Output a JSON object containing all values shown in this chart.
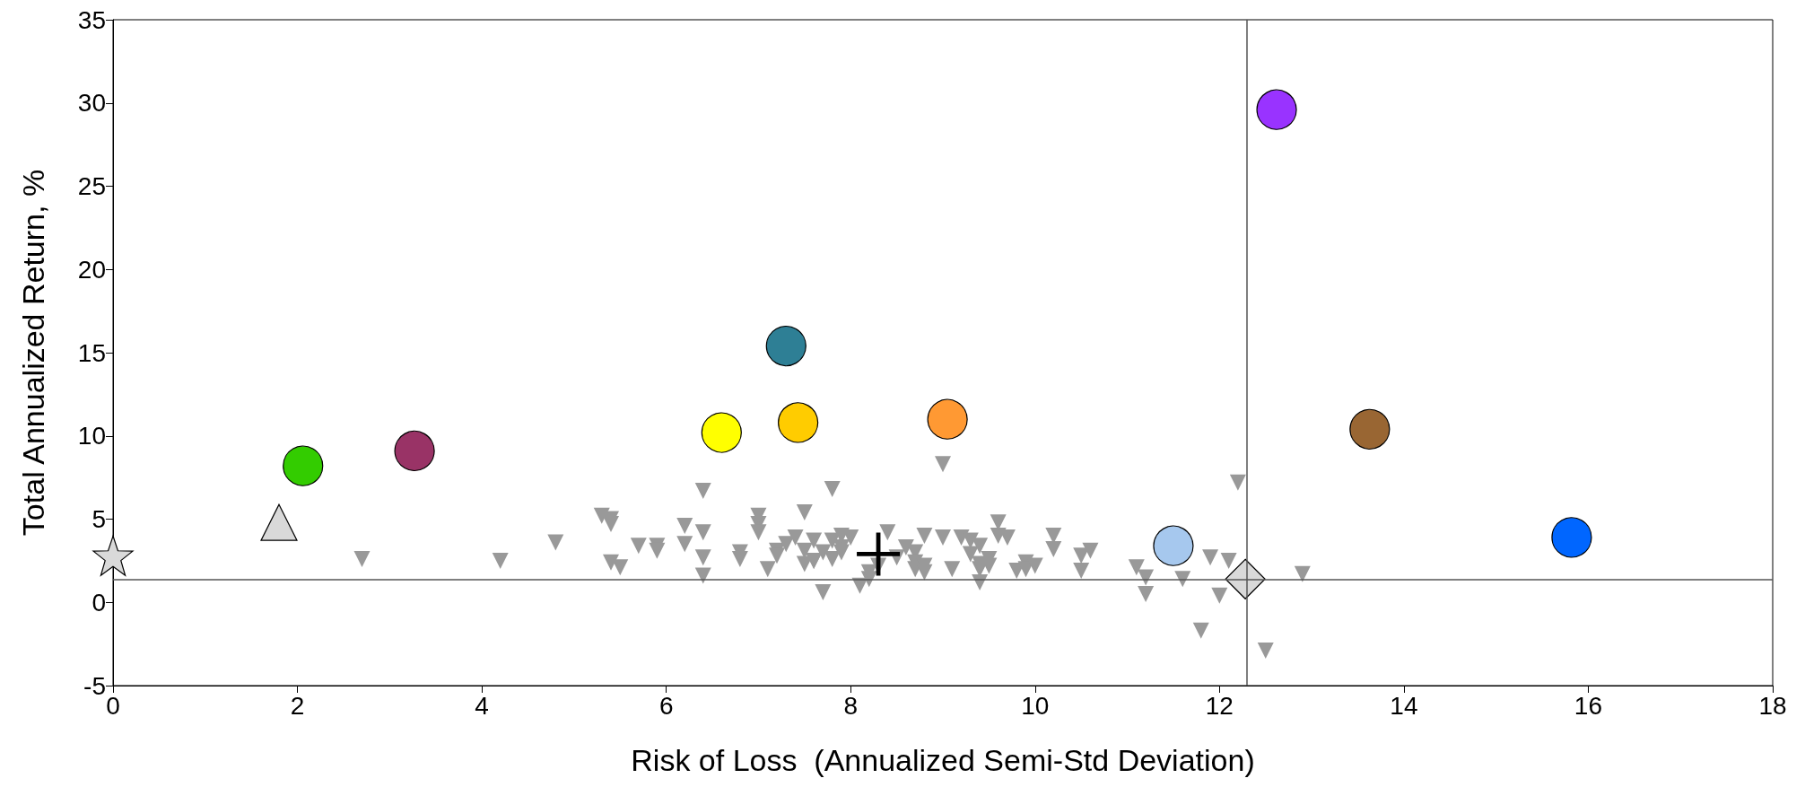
{
  "chart_data": {
    "type": "scatter",
    "xlabel": "Risk of Loss  (Annualized Semi-Std Deviation)",
    "ylabel": "Total Annualized Return, %",
    "xlim": [
      0,
      18
    ],
    "xticks": [
      0,
      2,
      4,
      6,
      8,
      10,
      12,
      14,
      16,
      18
    ],
    "ylim": [
      -5,
      35
    ],
    "yticks": [
      -5,
      0,
      5,
      10,
      15,
      20,
      25,
      30,
      35
    ],
    "grid": false,
    "ref_lines": [
      {
        "axis": "x",
        "value": 12.3,
        "color": "#555555"
      },
      {
        "axis": "y",
        "value": 1.4,
        "color": "#555555"
      }
    ],
    "series": [
      {
        "color": "#999999",
        "marker": "triangle_down",
        "x": [
          2.7,
          4.2,
          4.8,
          5.3,
          5.4,
          5.4,
          5.4,
          5.5,
          5.7,
          5.9,
          5.9,
          6.2,
          6.2,
          6.4,
          6.4,
          6.4,
          6.4,
          6.8,
          6.8,
          7.0,
          7.0,
          7.0,
          7.1,
          7.2,
          7.2,
          7.3,
          7.4,
          7.5,
          7.5,
          7.5,
          7.6,
          7.6,
          7.6,
          7.7,
          7.7,
          7.8,
          7.8,
          7.8,
          7.9,
          7.9,
          7.9,
          8.0,
          8.1,
          8.2,
          8.2,
          8.3,
          8.4,
          8.5,
          8.6,
          8.7,
          8.7,
          8.7,
          8.8,
          8.8,
          8.8,
          9.0,
          9.0,
          9.1,
          9.2,
          9.3,
          9.3,
          9.4,
          9.4,
          9.4,
          9.4,
          9.5,
          9.5,
          9.6,
          9.6,
          9.7,
          9.8,
          9.9,
          9.9,
          10.0,
          10.2,
          10.2,
          10.5,
          10.5,
          10.6,
          11.1,
          11.2,
          11.2,
          11.6,
          11.8,
          11.9,
          12.0,
          12.1,
          12.2,
          12.5,
          12.9
        ],
        "values": [
          2.6,
          2.5,
          3.6,
          5.2,
          5.0,
          4.7,
          2.4,
          2.1,
          3.4,
          3.4,
          3.1,
          4.6,
          3.5,
          1.6,
          2.7,
          6.7,
          4.2,
          3.0,
          2.6,
          4.7,
          5.2,
          4.2,
          2.0,
          3.1,
          2.8,
          3.5,
          3.9,
          2.3,
          5.4,
          3.1,
          2.5,
          2.5,
          3.7,
          3.0,
          0.6,
          6.8,
          2.6,
          3.7,
          3.3,
          4.0,
          3.0,
          3.9,
          1.0,
          1.4,
          1.8,
          2.2,
          4.2,
          2.7,
          3.3,
          2.0,
          3.0,
          2.4,
          2.2,
          4.0,
          1.8,
          8.3,
          3.9,
          2.0,
          3.9,
          2.9,
          3.7,
          3.4,
          2.0,
          2.3,
          1.2,
          2.6,
          2.2,
          4.0,
          4.8,
          3.9,
          1.9,
          2.4,
          2.0,
          2.2,
          4.0,
          3.2,
          1.9,
          2.8,
          3.1,
          2.1,
          0.5,
          1.5,
          1.4,
          -1.7,
          2.7,
          0.4,
          2.5,
          7.2,
          -2.9,
          1.7
        ]
      },
      {
        "color": "#d9d9d9",
        "marker": "star",
        "x": [
          0.0
        ],
        "values": [
          2.8
        ]
      },
      {
        "color": "#d9d9d9",
        "marker": "triangle",
        "x": [
          1.8
        ],
        "values": [
          4.8
        ]
      },
      {
        "color": "#33cc00",
        "marker": "circle",
        "x": [
          2.06
        ],
        "values": [
          8.2
        ]
      },
      {
        "color": "#993366",
        "marker": "circle",
        "x": [
          3.27
        ],
        "values": [
          9.1
        ]
      },
      {
        "color": "#ffff00",
        "marker": "circle",
        "x": [
          6.6
        ],
        "values": [
          10.2
        ]
      },
      {
        "color": "#2e7f95",
        "marker": "circle",
        "x": [
          7.3
        ],
        "values": [
          15.4
        ]
      },
      {
        "color": "#ffcc00",
        "marker": "circle",
        "x": [
          7.43
        ],
        "values": [
          10.8
        ]
      },
      {
        "color": "#ff9933",
        "marker": "circle",
        "x": [
          9.05
        ],
        "values": [
          11.0
        ]
      },
      {
        "color": "#000000",
        "marker": "cross",
        "x": [
          8.3
        ],
        "values": [
          2.9
        ]
      },
      {
        "color": "#a6c8ee",
        "marker": "circle",
        "x": [
          11.5
        ],
        "values": [
          3.4
        ]
      },
      {
        "color": "#d9d9d9",
        "marker": "diamond",
        "x": [
          12.28
        ],
        "values": [
          1.4
        ]
      },
      {
        "color": "#9933ff",
        "marker": "circle",
        "x": [
          12.62
        ],
        "values": [
          29.6
        ]
      },
      {
        "color": "#996633",
        "marker": "circle",
        "x": [
          13.63
        ],
        "values": [
          10.4
        ]
      },
      {
        "color": "#0066ff",
        "marker": "circle",
        "x": [
          15.82
        ],
        "values": [
          3.9
        ]
      }
    ]
  }
}
